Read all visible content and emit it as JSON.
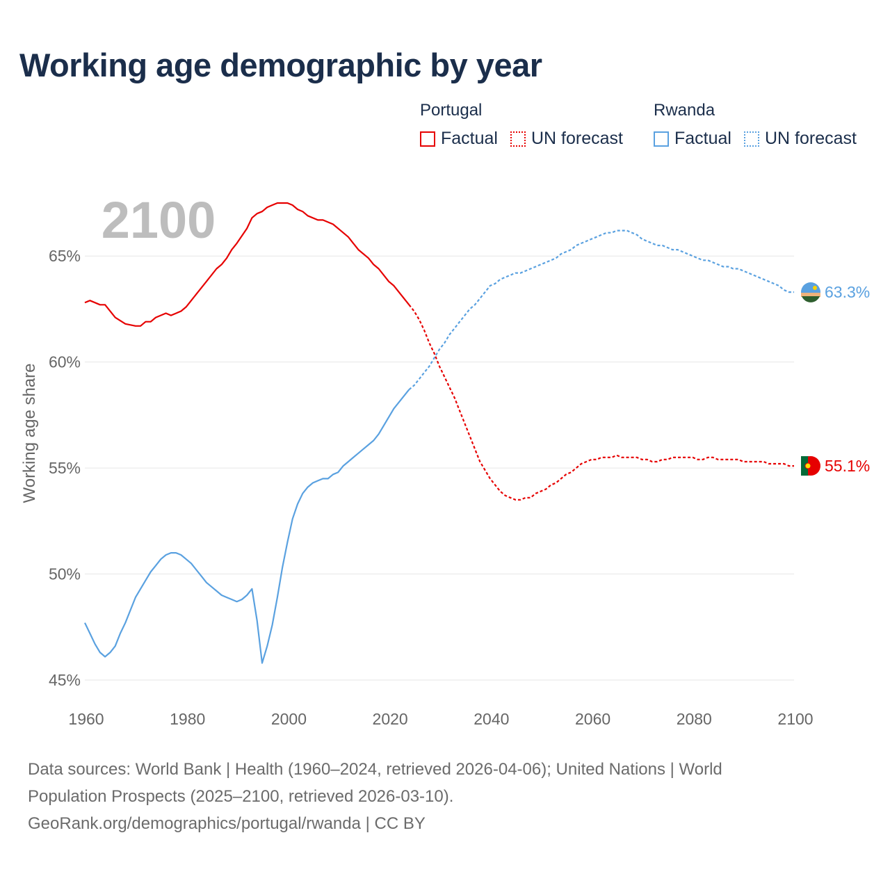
{
  "title": "Working age demographic by year",
  "legend": {
    "groups": [
      {
        "country": "Portugal",
        "color": "#e60000",
        "items": [
          {
            "label": "Factual",
            "style": "solid"
          },
          {
            "label": "UN forecast",
            "style": "dotted"
          }
        ]
      },
      {
        "country": "Rwanda",
        "color": "#5aa1e0",
        "items": [
          {
            "label": "Factual",
            "style": "solid"
          },
          {
            "label": "UN forecast",
            "style": "dotted"
          }
        ]
      }
    ]
  },
  "chart_data": {
    "type": "line",
    "title": "Working age demographic by year",
    "watermark_year": "2100",
    "ylabel": "Working age share",
    "xlabel": "",
    "xlim": [
      1960,
      2100
    ],
    "ylim": [
      45,
      67.5
    ],
    "xticks": [
      1960,
      1980,
      2000,
      2020,
      2040,
      2060,
      2080,
      2100
    ],
    "yticks": [
      45,
      50,
      55,
      60,
      65
    ],
    "ytick_format": "%",
    "grid": "horizontal",
    "factual_end_year": 2024,
    "series": [
      {
        "name": "Portugal",
        "color": "#e60000",
        "end_label": "55.1%",
        "end_value": 55.1,
        "flag": "portugal-flag",
        "points": [
          [
            1960,
            62.8
          ],
          [
            1961,
            62.9
          ],
          [
            1963,
            62.7
          ],
          [
            1964,
            62.7
          ],
          [
            1966,
            62.1
          ],
          [
            1968,
            61.8
          ],
          [
            1970,
            61.7
          ],
          [
            1971,
            61.7
          ],
          [
            1972,
            61.9
          ],
          [
            1973,
            61.9
          ],
          [
            1974,
            62.1
          ],
          [
            1976,
            62.3
          ],
          [
            1977,
            62.2
          ],
          [
            1979,
            62.4
          ],
          [
            1980,
            62.6
          ],
          [
            1982,
            63.2
          ],
          [
            1984,
            63.8
          ],
          [
            1986,
            64.4
          ],
          [
            1987,
            64.6
          ],
          [
            1988,
            64.9
          ],
          [
            1989,
            65.3
          ],
          [
            1990,
            65.6
          ],
          [
            1992,
            66.3
          ],
          [
            1993,
            66.8
          ],
          [
            1994,
            67.0
          ],
          [
            1995,
            67.1
          ],
          [
            1996,
            67.3
          ],
          [
            1997,
            67.4
          ],
          [
            1998,
            67.5
          ],
          [
            2000,
            67.5
          ],
          [
            2001,
            67.4
          ],
          [
            2002,
            67.2
          ],
          [
            2003,
            67.1
          ],
          [
            2004,
            66.9
          ],
          [
            2006,
            66.7
          ],
          [
            2007,
            66.7
          ],
          [
            2009,
            66.5
          ],
          [
            2011,
            66.1
          ],
          [
            2012,
            65.9
          ],
          [
            2013,
            65.6
          ],
          [
            2014,
            65.3
          ],
          [
            2016,
            64.9
          ],
          [
            2017,
            64.6
          ],
          [
            2018,
            64.4
          ],
          [
            2019,
            64.1
          ],
          [
            2020,
            63.8
          ],
          [
            2021,
            63.6
          ],
          [
            2022,
            63.3
          ],
          [
            2023,
            63.0
          ],
          [
            2024,
            62.7
          ],
          [
            2025,
            62.4
          ],
          [
            2026,
            62.0
          ],
          [
            2027,
            61.5
          ],
          [
            2028,
            60.9
          ],
          [
            2029,
            60.4
          ],
          [
            2030,
            59.8
          ],
          [
            2031,
            59.3
          ],
          [
            2032,
            58.8
          ],
          [
            2033,
            58.3
          ],
          [
            2034,
            57.7
          ],
          [
            2035,
            57.1
          ],
          [
            2036,
            56.5
          ],
          [
            2037,
            55.9
          ],
          [
            2038,
            55.3
          ],
          [
            2039,
            54.9
          ],
          [
            2040,
            54.5
          ],
          [
            2041,
            54.2
          ],
          [
            2042,
            53.9
          ],
          [
            2043,
            53.7
          ],
          [
            2044,
            53.6
          ],
          [
            2045,
            53.5
          ],
          [
            2046,
            53.5
          ],
          [
            2047,
            53.6
          ],
          [
            2048,
            53.6
          ],
          [
            2049,
            53.8
          ],
          [
            2050,
            53.9
          ],
          [
            2051,
            54.0
          ],
          [
            2052,
            54.2
          ],
          [
            2053,
            54.3
          ],
          [
            2054,
            54.5
          ],
          [
            2055,
            54.7
          ],
          [
            2056,
            54.8
          ],
          [
            2057,
            55.0
          ],
          [
            2058,
            55.2
          ],
          [
            2059,
            55.3
          ],
          [
            2060,
            55.4
          ],
          [
            2061,
            55.4
          ],
          [
            2062,
            55.5
          ],
          [
            2063,
            55.5
          ],
          [
            2064,
            55.5
          ],
          [
            2065,
            55.6
          ],
          [
            2066,
            55.5
          ],
          [
            2067,
            55.5
          ],
          [
            2068,
            55.5
          ],
          [
            2069,
            55.5
          ],
          [
            2070,
            55.4
          ],
          [
            2071,
            55.4
          ],
          [
            2072,
            55.3
          ],
          [
            2073,
            55.3
          ],
          [
            2074,
            55.4
          ],
          [
            2075,
            55.4
          ],
          [
            2076,
            55.5
          ],
          [
            2077,
            55.5
          ],
          [
            2078,
            55.5
          ],
          [
            2079,
            55.5
          ],
          [
            2080,
            55.5
          ],
          [
            2081,
            55.4
          ],
          [
            2082,
            55.4
          ],
          [
            2083,
            55.5
          ],
          [
            2084,
            55.5
          ],
          [
            2085,
            55.4
          ],
          [
            2086,
            55.4
          ],
          [
            2087,
            55.4
          ],
          [
            2088,
            55.4
          ],
          [
            2089,
            55.4
          ],
          [
            2090,
            55.3
          ],
          [
            2091,
            55.3
          ],
          [
            2092,
            55.3
          ],
          [
            2093,
            55.3
          ],
          [
            2094,
            55.3
          ],
          [
            2095,
            55.2
          ],
          [
            2096,
            55.2
          ],
          [
            2097,
            55.2
          ],
          [
            2098,
            55.2
          ],
          [
            2099,
            55.1
          ],
          [
            2100,
            55.1
          ]
        ]
      },
      {
        "name": "Rwanda",
        "color": "#5aa1e0",
        "end_label": "63.3%",
        "end_value": 63.3,
        "flag": "rwanda-flag",
        "points": [
          [
            1960,
            47.7
          ],
          [
            1961,
            47.2
          ],
          [
            1962,
            46.7
          ],
          [
            1963,
            46.3
          ],
          [
            1964,
            46.1
          ],
          [
            1965,
            46.3
          ],
          [
            1966,
            46.6
          ],
          [
            1967,
            47.2
          ],
          [
            1968,
            47.7
          ],
          [
            1969,
            48.3
          ],
          [
            1970,
            48.9
          ],
          [
            1971,
            49.3
          ],
          [
            1972,
            49.7
          ],
          [
            1973,
            50.1
          ],
          [
            1974,
            50.4
          ],
          [
            1975,
            50.7
          ],
          [
            1976,
            50.9
          ],
          [
            1977,
            51.0
          ],
          [
            1978,
            51.0
          ],
          [
            1979,
            50.9
          ],
          [
            1980,
            50.7
          ],
          [
            1981,
            50.5
          ],
          [
            1982,
            50.2
          ],
          [
            1983,
            49.9
          ],
          [
            1984,
            49.6
          ],
          [
            1985,
            49.4
          ],
          [
            1986,
            49.2
          ],
          [
            1987,
            49.0
          ],
          [
            1988,
            48.9
          ],
          [
            1989,
            48.8
          ],
          [
            1990,
            48.7
          ],
          [
            1991,
            48.8
          ],
          [
            1992,
            49.0
          ],
          [
            1993,
            49.3
          ],
          [
            1994,
            47.8
          ],
          [
            1995,
            45.8
          ],
          [
            1996,
            46.6
          ],
          [
            1997,
            47.6
          ],
          [
            1998,
            48.9
          ],
          [
            1999,
            50.3
          ],
          [
            2000,
            51.5
          ],
          [
            2001,
            52.6
          ],
          [
            2002,
            53.3
          ],
          [
            2003,
            53.8
          ],
          [
            2004,
            54.1
          ],
          [
            2005,
            54.3
          ],
          [
            2006,
            54.4
          ],
          [
            2007,
            54.5
          ],
          [
            2008,
            54.5
          ],
          [
            2009,
            54.7
          ],
          [
            2010,
            54.8
          ],
          [
            2011,
            55.1
          ],
          [
            2012,
            55.3
          ],
          [
            2013,
            55.5
          ],
          [
            2014,
            55.7
          ],
          [
            2015,
            55.9
          ],
          [
            2016,
            56.1
          ],
          [
            2017,
            56.3
          ],
          [
            2018,
            56.6
          ],
          [
            2019,
            57.0
          ],
          [
            2020,
            57.4
          ],
          [
            2021,
            57.8
          ],
          [
            2022,
            58.1
          ],
          [
            2023,
            58.4
          ],
          [
            2024,
            58.7
          ],
          [
            2025,
            58.9
          ],
          [
            2026,
            59.2
          ],
          [
            2027,
            59.5
          ],
          [
            2028,
            59.8
          ],
          [
            2029,
            60.2
          ],
          [
            2030,
            60.6
          ],
          [
            2031,
            60.9
          ],
          [
            2032,
            61.3
          ],
          [
            2033,
            61.6
          ],
          [
            2034,
            61.9
          ],
          [
            2035,
            62.2
          ],
          [
            2036,
            62.5
          ],
          [
            2037,
            62.7
          ],
          [
            2038,
            63.0
          ],
          [
            2039,
            63.3
          ],
          [
            2040,
            63.6
          ],
          [
            2041,
            63.7
          ],
          [
            2042,
            63.9
          ],
          [
            2043,
            64.0
          ],
          [
            2044,
            64.1
          ],
          [
            2045,
            64.2
          ],
          [
            2046,
            64.2
          ],
          [
            2047,
            64.3
          ],
          [
            2048,
            64.4
          ],
          [
            2049,
            64.5
          ],
          [
            2050,
            64.6
          ],
          [
            2051,
            64.7
          ],
          [
            2052,
            64.8
          ],
          [
            2053,
            64.9
          ],
          [
            2054,
            65.1
          ],
          [
            2055,
            65.2
          ],
          [
            2056,
            65.3
          ],
          [
            2057,
            65.5
          ],
          [
            2058,
            65.6
          ],
          [
            2059,
            65.7
          ],
          [
            2060,
            65.8
          ],
          [
            2061,
            65.9
          ],
          [
            2062,
            66.0
          ],
          [
            2063,
            66.1
          ],
          [
            2064,
            66.1
          ],
          [
            2065,
            66.2
          ],
          [
            2066,
            66.2
          ],
          [
            2067,
            66.2
          ],
          [
            2068,
            66.1
          ],
          [
            2069,
            66.0
          ],
          [
            2070,
            65.8
          ],
          [
            2071,
            65.7
          ],
          [
            2072,
            65.6
          ],
          [
            2073,
            65.5
          ],
          [
            2074,
            65.5
          ],
          [
            2075,
            65.4
          ],
          [
            2076,
            65.3
          ],
          [
            2077,
            65.3
          ],
          [
            2078,
            65.2
          ],
          [
            2079,
            65.1
          ],
          [
            2080,
            65.0
          ],
          [
            2081,
            64.9
          ],
          [
            2082,
            64.8
          ],
          [
            2083,
            64.8
          ],
          [
            2084,
            64.7
          ],
          [
            2085,
            64.6
          ],
          [
            2086,
            64.5
          ],
          [
            2087,
            64.5
          ],
          [
            2088,
            64.4
          ],
          [
            2089,
            64.4
          ],
          [
            2090,
            64.3
          ],
          [
            2091,
            64.2
          ],
          [
            2092,
            64.1
          ],
          [
            2093,
            64.0
          ],
          [
            2094,
            63.9
          ],
          [
            2095,
            63.8
          ],
          [
            2096,
            63.7
          ],
          [
            2097,
            63.6
          ],
          [
            2098,
            63.4
          ],
          [
            2099,
            63.3
          ],
          [
            2100,
            63.3
          ]
        ]
      }
    ]
  },
  "footer": {
    "line1": "Data sources: World Bank | Health (1960–2024, retrieved 2026-04-06); United Nations | World",
    "line2": "Population Prospects (2025–2100, retrieved 2026-03-10).",
    "line3": "GeoRank.org/demographics/portugal/rwanda | CC BY"
  }
}
